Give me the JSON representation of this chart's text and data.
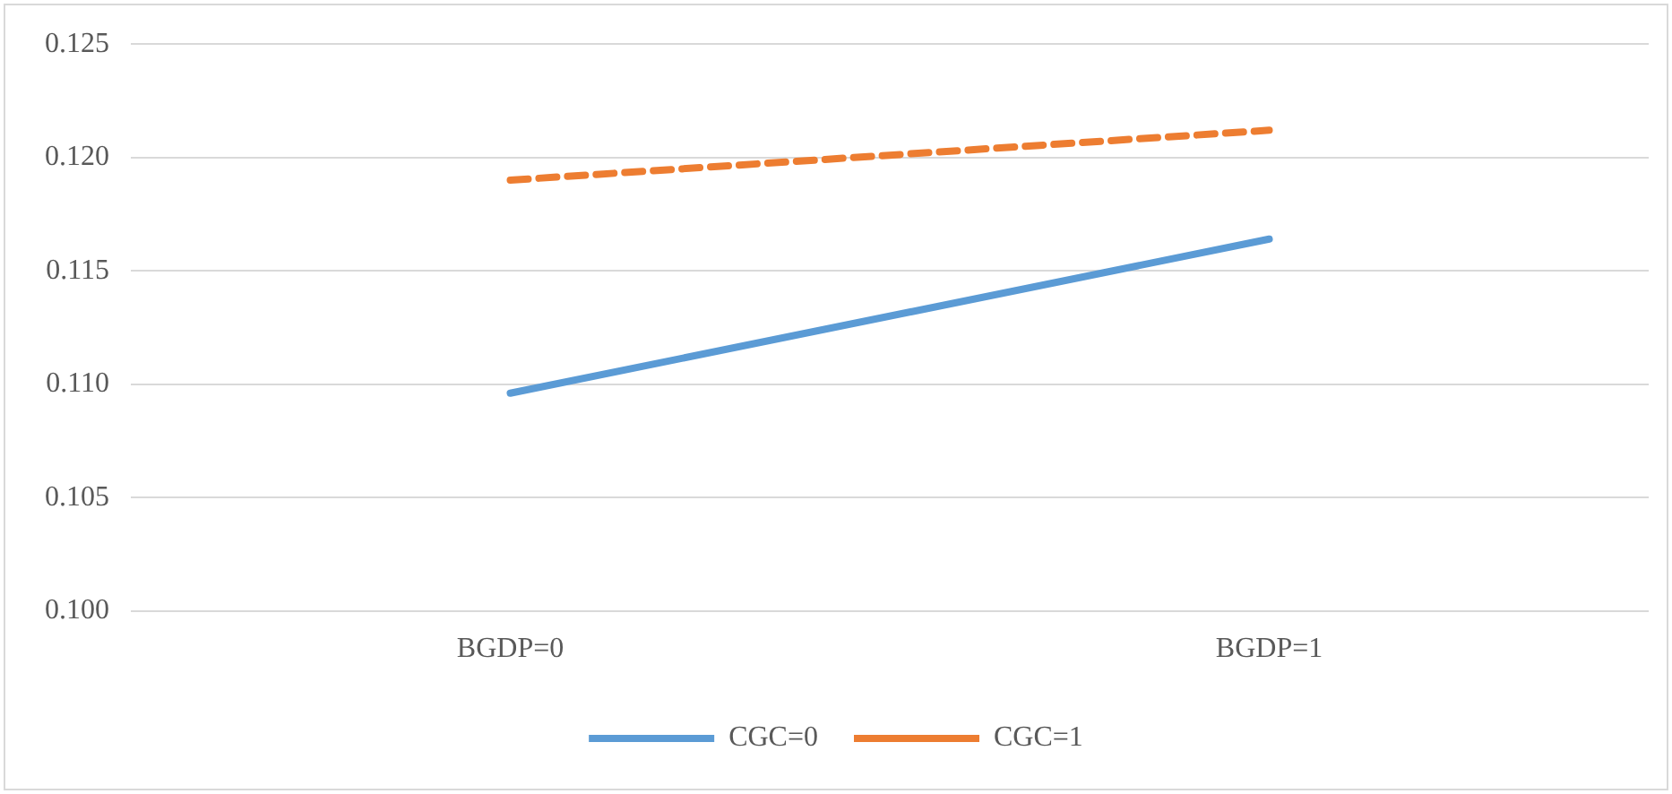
{
  "chart_data": {
    "type": "line",
    "categories": [
      "BGDP=0",
      "BGDP=1"
    ],
    "series": [
      {
        "name": "CGC=0",
        "color": "#5b9bd5",
        "values": [
          0.1096,
          0.1164
        ],
        "line_style": "solid"
      },
      {
        "name": "CGC=1",
        "color": "#ed7d31",
        "values": [
          0.119,
          0.1212
        ],
        "line_style": "dashed"
      }
    ],
    "ylim": [
      0.1,
      0.125
    ],
    "yticks": [
      {
        "value": 0.1,
        "label": "0.100"
      },
      {
        "value": 0.105,
        "label": "0.105"
      },
      {
        "value": 0.11,
        "label": "0.110"
      },
      {
        "value": 0.115,
        "label": "0.115"
      },
      {
        "value": 0.12,
        "label": "0.120"
      },
      {
        "value": 0.125,
        "label": "0.125"
      }
    ],
    "grid": "y",
    "legend": "bottom",
    "marker": "none"
  }
}
